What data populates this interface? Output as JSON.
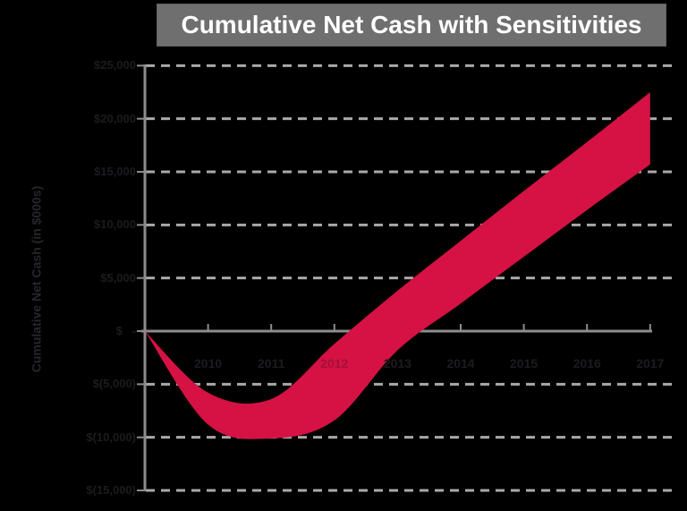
{
  "title": {
    "text": "Cumulative Net Cash with Sensitivities"
  },
  "y_axis": {
    "title": "Cumulative Net Cash (in $000s)",
    "ticks": [
      {
        "value": 25000,
        "label": "$25,000"
      },
      {
        "value": 20000,
        "label": "$20,000"
      },
      {
        "value": 15000,
        "label": "$15,000"
      },
      {
        "value": 10000,
        "label": "$10,000"
      },
      {
        "value": 5000,
        "label": "$5,000"
      },
      {
        "value": 0,
        "label": "$   -"
      },
      {
        "value": -5000,
        "label": "$(5,000)"
      },
      {
        "value": -10000,
        "label": "$(10,000)"
      },
      {
        "value": -15000,
        "label": "$(15,000)"
      }
    ]
  },
  "x_axis": {
    "ticks": [
      {
        "year": 2010,
        "label": "2010",
        "on_band": false
      },
      {
        "year": 2011,
        "label": "2011",
        "on_band": false
      },
      {
        "year": 2012,
        "label": "2012",
        "on_band": true
      },
      {
        "year": 2013,
        "label": "2013",
        "on_band": false
      },
      {
        "year": 2014,
        "label": "2014",
        "on_band": false
      },
      {
        "year": 2015,
        "label": "2015",
        "on_band": false
      },
      {
        "year": 2016,
        "label": "2016",
        "on_band": false
      },
      {
        "year": 2017,
        "label": "2017",
        "on_band": false
      }
    ]
  },
  "chart_data": {
    "type": "area",
    "title": "Cumulative Net Cash with Sensitivities",
    "ylabel": "Cumulative Net Cash (in $000s)",
    "xlabel": "",
    "x": [
      2009,
      2010,
      2011,
      2012,
      2013,
      2014,
      2015,
      2016,
      2017
    ],
    "series": [
      {
        "name": "upper_sensitivity_bound",
        "values": [
          0,
          -5800,
          -6400,
          -1200,
          3800,
          8500,
          13200,
          17800,
          22500
        ]
      },
      {
        "name": "lower_sensitivity_bound",
        "values": [
          0,
          -8800,
          -10100,
          -8400,
          -1800,
          2600,
          7000,
          11400,
          15700
        ]
      }
    ],
    "ylim": [
      -15000,
      25000
    ],
    "xlim": [
      2009,
      2017
    ],
    "y_tick_step": 5000,
    "grid": "dashed-horizontal",
    "legend": "none",
    "band_fill": true
  },
  "colors": {
    "background": "#000000",
    "band": "#D51243",
    "axis": "#8C8C8C",
    "gridline": "#A9A9A9",
    "tick_label": "#1C1C20",
    "tick_label_on_band": "#A21038",
    "axis_title": "#26262B",
    "title_bg": "#6F6F6F",
    "title_text": "#FFFFFF"
  }
}
